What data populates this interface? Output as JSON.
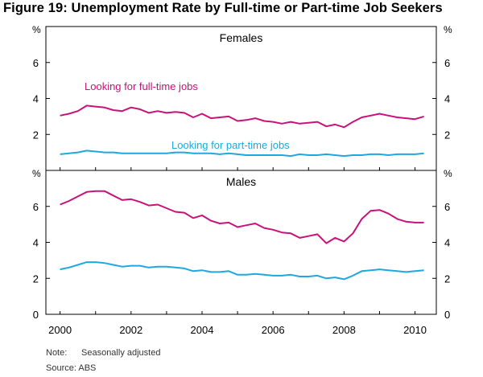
{
  "figure": {
    "title": "Figure 19: Unemployment Rate by Full-time or Part-time Job Seekers",
    "note_label": "Note:",
    "note_text": "Seasonally adjusted",
    "source": "Source: ABS"
  },
  "colors": {
    "fulltime": "#c8127a",
    "parttime": "#1ea8e0",
    "axis": "#000000",
    "grid": "#cccccc"
  },
  "chart_data": [
    {
      "type": "line",
      "title": "Females",
      "unit_label": "%",
      "ylim": [
        0,
        8
      ],
      "yticks": [
        2,
        4,
        6
      ],
      "xlim": [
        1999.6,
        2010.6
      ],
      "grid": false,
      "series": [
        {
          "name": "Looking for full-time jobs",
          "x": [
            2000.0,
            2000.25,
            2000.5,
            2000.75,
            2001.0,
            2001.25,
            2001.5,
            2001.75,
            2002.0,
            2002.25,
            2002.5,
            2002.75,
            2003.0,
            2003.25,
            2003.5,
            2003.75,
            2004.0,
            2004.25,
            2004.5,
            2004.75,
            2005.0,
            2005.25,
            2005.5,
            2005.75,
            2006.0,
            2006.25,
            2006.5,
            2006.75,
            2007.0,
            2007.25,
            2007.5,
            2007.75,
            2008.0,
            2008.25,
            2008.5,
            2008.75,
            2009.0,
            2009.25,
            2009.5,
            2009.75,
            2010.0,
            2010.25
          ],
          "values": [
            3.05,
            3.15,
            3.3,
            3.6,
            3.55,
            3.5,
            3.35,
            3.3,
            3.5,
            3.4,
            3.2,
            3.3,
            3.2,
            3.25,
            3.2,
            2.95,
            3.15,
            2.9,
            2.95,
            3.0,
            2.75,
            2.8,
            2.9,
            2.75,
            2.7,
            2.6,
            2.7,
            2.6,
            2.65,
            2.7,
            2.45,
            2.55,
            2.4,
            2.7,
            2.95,
            3.05,
            3.15,
            3.05,
            2.95,
            2.9,
            2.85,
            3.0
          ]
        },
        {
          "name": "Looking for part-time jobs",
          "x": [
            2000.0,
            2000.25,
            2000.5,
            2000.75,
            2001.0,
            2001.25,
            2001.5,
            2001.75,
            2002.0,
            2002.25,
            2002.5,
            2002.75,
            2003.0,
            2003.25,
            2003.5,
            2003.75,
            2004.0,
            2004.25,
            2004.5,
            2004.75,
            2005.0,
            2005.25,
            2005.5,
            2005.75,
            2006.0,
            2006.25,
            2006.5,
            2006.75,
            2007.0,
            2007.25,
            2007.5,
            2007.75,
            2008.0,
            2008.25,
            2008.5,
            2008.75,
            2009.0,
            2009.25,
            2009.5,
            2009.75,
            2010.0,
            2010.25
          ],
          "values": [
            0.9,
            0.95,
            1.0,
            1.1,
            1.05,
            1.0,
            1.0,
            0.95,
            0.95,
            0.95,
            0.95,
            0.95,
            0.95,
            1.0,
            1.0,
            0.95,
            0.95,
            0.95,
            0.9,
            0.95,
            0.9,
            0.85,
            0.85,
            0.85,
            0.85,
            0.85,
            0.8,
            0.9,
            0.85,
            0.85,
            0.9,
            0.85,
            0.8,
            0.85,
            0.85,
            0.9,
            0.9,
            0.85,
            0.9,
            0.9,
            0.9,
            0.95
          ]
        }
      ],
      "annotations": [
        {
          "text": "Looking for full-time jobs",
          "series": 0
        },
        {
          "text": "Looking for part-time jobs",
          "series": 1
        }
      ]
    },
    {
      "type": "line",
      "title": "Males",
      "unit_label": "%",
      "ylim": [
        0,
        8
      ],
      "yticks": [
        0,
        2,
        4,
        6
      ],
      "xlim": [
        1999.6,
        2010.6
      ],
      "xticks": [
        2000,
        2002,
        2004,
        2006,
        2008,
        2010
      ],
      "grid": false,
      "series": [
        {
          "name": "Looking for full-time jobs",
          "x": [
            2000.0,
            2000.25,
            2000.5,
            2000.75,
            2001.0,
            2001.25,
            2001.5,
            2001.75,
            2002.0,
            2002.25,
            2002.5,
            2002.75,
            2003.0,
            2003.25,
            2003.5,
            2003.75,
            2004.0,
            2004.25,
            2004.5,
            2004.75,
            2005.0,
            2005.25,
            2005.5,
            2005.75,
            2006.0,
            2006.25,
            2006.5,
            2006.75,
            2007.0,
            2007.25,
            2007.5,
            2007.75,
            2008.0,
            2008.25,
            2008.5,
            2008.75,
            2009.0,
            2009.25,
            2009.5,
            2009.75,
            2010.0,
            2010.25
          ],
          "values": [
            6.1,
            6.3,
            6.55,
            6.8,
            6.85,
            6.85,
            6.6,
            6.35,
            6.4,
            6.25,
            6.05,
            6.1,
            5.9,
            5.7,
            5.65,
            5.35,
            5.5,
            5.2,
            5.05,
            5.1,
            4.85,
            4.95,
            5.05,
            4.8,
            4.7,
            4.55,
            4.5,
            4.25,
            4.35,
            4.45,
            3.95,
            4.25,
            4.05,
            4.5,
            5.3,
            5.75,
            5.8,
            5.6,
            5.3,
            5.15,
            5.1,
            5.1
          ]
        },
        {
          "name": "Looking for part-time jobs",
          "x": [
            2000.0,
            2000.25,
            2000.5,
            2000.75,
            2001.0,
            2001.25,
            2001.5,
            2001.75,
            2002.0,
            2002.25,
            2002.5,
            2002.75,
            2003.0,
            2003.25,
            2003.5,
            2003.75,
            2004.0,
            2004.25,
            2004.5,
            2004.75,
            2005.0,
            2005.25,
            2005.5,
            2005.75,
            2006.0,
            2006.25,
            2006.5,
            2006.75,
            2007.0,
            2007.25,
            2007.5,
            2007.75,
            2008.0,
            2008.25,
            2008.5,
            2008.75,
            2009.0,
            2009.25,
            2009.5,
            2009.75,
            2010.0,
            2010.25
          ],
          "values": [
            2.5,
            2.6,
            2.75,
            2.9,
            2.9,
            2.85,
            2.75,
            2.65,
            2.7,
            2.7,
            2.6,
            2.65,
            2.65,
            2.6,
            2.55,
            2.4,
            2.45,
            2.35,
            2.35,
            2.4,
            2.2,
            2.2,
            2.25,
            2.2,
            2.15,
            2.15,
            2.2,
            2.1,
            2.1,
            2.15,
            2.0,
            2.05,
            1.95,
            2.15,
            2.4,
            2.45,
            2.5,
            2.45,
            2.4,
            2.35,
            2.4,
            2.45
          ]
        }
      ],
      "annotations": []
    }
  ]
}
